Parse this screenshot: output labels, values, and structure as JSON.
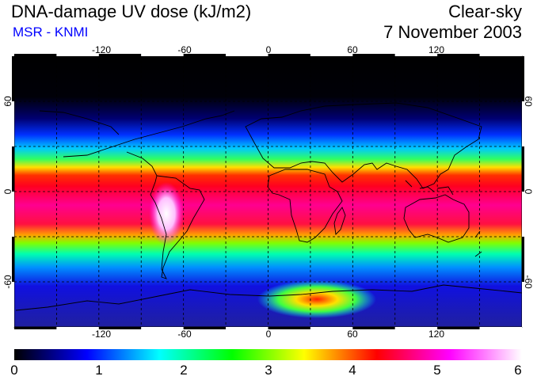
{
  "header": {
    "title": "DNA-damage UV dose (kJ/m2)",
    "subtitle": "MSR - KNMI",
    "condition": "Clear-sky",
    "date": "7 November 2003"
  },
  "map": {
    "projection": "equirectangular",
    "lon_range": [
      -180,
      180
    ],
    "lat_range": [
      -90,
      90
    ],
    "lon_ticks": [
      "-120",
      "-60",
      "0",
      "60",
      "120"
    ],
    "lat_ticks": [
      "60",
      "0",
      "-60"
    ],
    "gridlines": true,
    "coastlines": true
  },
  "colorbar": {
    "min": 0,
    "max": 6,
    "labels": [
      "0",
      "1",
      "2",
      "3",
      "4",
      "5",
      "6"
    ],
    "colors": [
      "#000000",
      "#0000ff",
      "#00ffff",
      "#00ff00",
      "#ffff00",
      "#ff0000",
      "#ff00ff",
      "#ffffff"
    ]
  }
}
